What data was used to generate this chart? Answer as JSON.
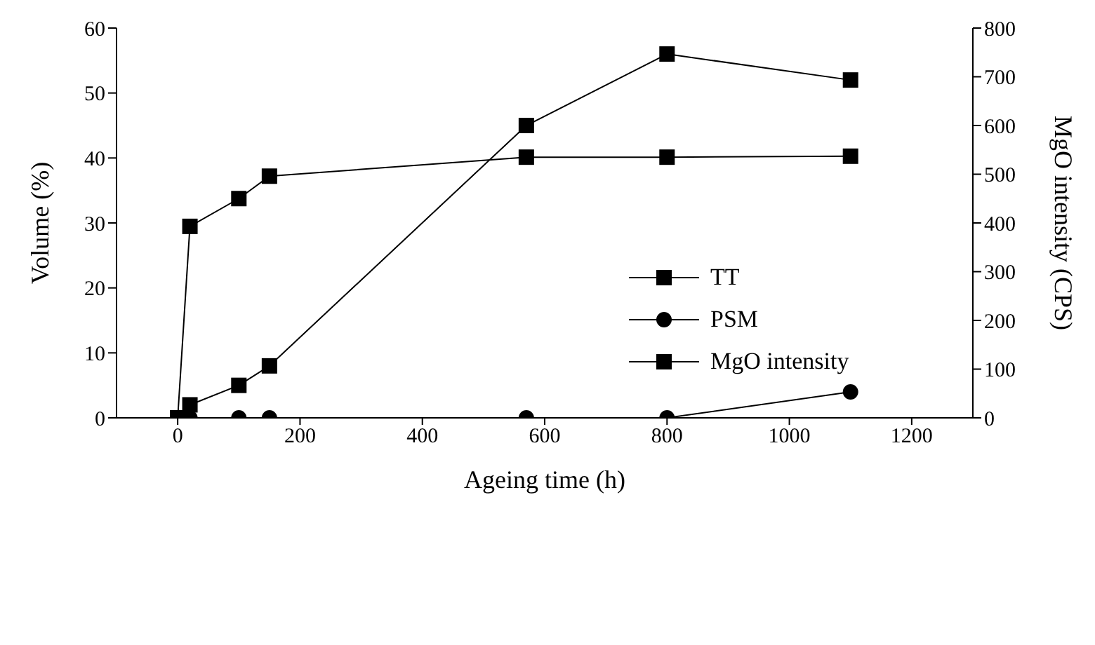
{
  "chart_data": {
    "type": "line",
    "xlabel": "Ageing time (h)",
    "ylabel": "Volume (%)",
    "y2label": "MgO intensity (CPS)",
    "x": [
      0,
      20,
      100,
      150,
      570,
      800,
      1100
    ],
    "series": [
      {
        "name": "TT",
        "color": "#000000",
        "marker": "square",
        "values": [
          0,
          2,
          5,
          8,
          45,
          56,
          52
        ]
      },
      {
        "name": "PSM",
        "color": "#000000",
        "marker": "circle",
        "values": [
          0,
          0,
          0,
          0,
          0,
          0,
          4
        ]
      },
      {
        "name": "MgO intensity",
        "color": "#000000",
        "marker": "square",
        "axis": "y2",
        "values": [
          0,
          393,
          450,
          496,
          535,
          535,
          537
        ]
      }
    ],
    "xlim": [
      -100,
      1300
    ],
    "xticks": [
      0,
      200,
      400,
      600,
      800,
      1000,
      1200
    ],
    "ylim": [
      0,
      60
    ],
    "yticks": [
      0,
      10,
      20,
      30,
      40,
      50,
      60
    ],
    "y2lim": [
      0,
      800
    ],
    "y2ticks": [
      0,
      100,
      200,
      300,
      400,
      500,
      600,
      700,
      800
    ],
    "grid": false,
    "legend": "right",
    "line_style": "solid"
  }
}
